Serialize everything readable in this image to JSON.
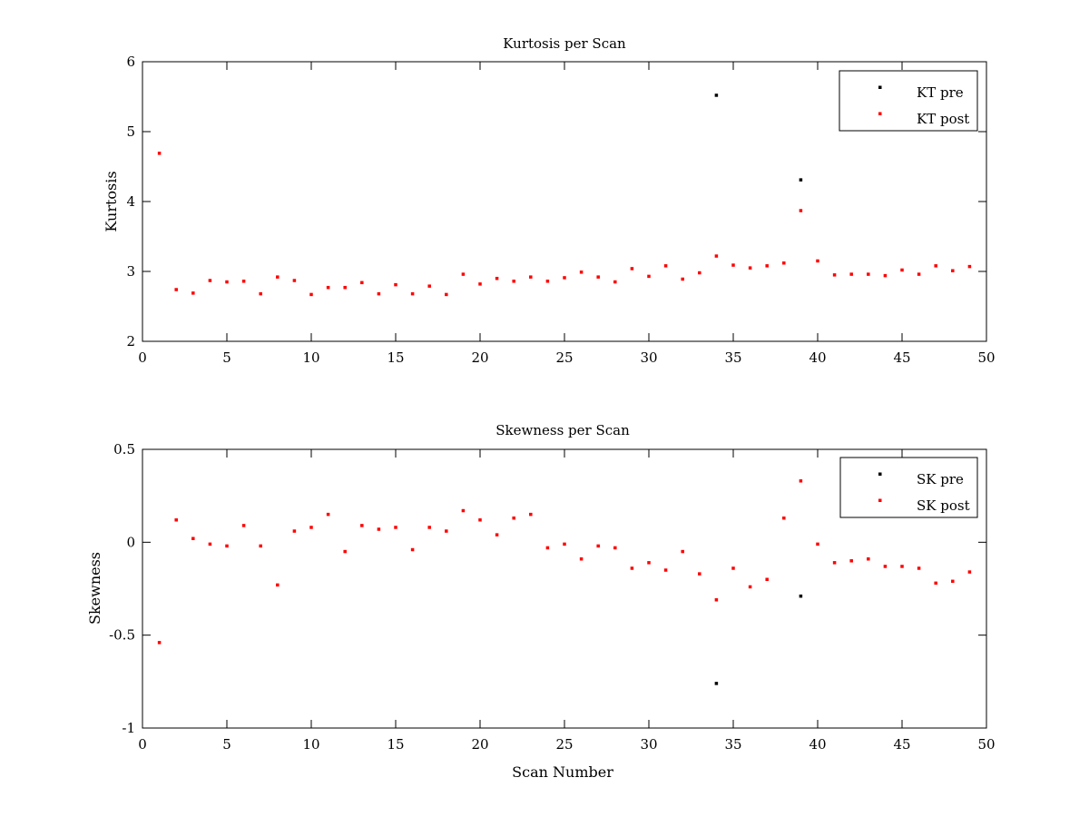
{
  "chart_data": [
    {
      "type": "scatter",
      "title": "Kurtosis per Scan",
      "xlabel": "",
      "ylabel": "Kurtosis",
      "xlim": [
        0,
        50
      ],
      "ylim": [
        2,
        6
      ],
      "xticks": [
        "0",
        "5",
        "10",
        "15",
        "20",
        "25",
        "30",
        "35",
        "40",
        "45",
        "50"
      ],
      "yticks": [
        "2",
        "3",
        "4",
        "5",
        "6"
      ],
      "legend_position": "top-right",
      "grid": false,
      "series": [
        {
          "name": "KT pre",
          "color": "#000000",
          "x": [
            34,
            39
          ],
          "y": [
            5.52,
            4.31
          ]
        },
        {
          "name": "KT post",
          "color": "#ff0000",
          "x": [
            1,
            2,
            3,
            4,
            5,
            6,
            7,
            8,
            9,
            10,
            11,
            12,
            13,
            14,
            15,
            16,
            17,
            18,
            19,
            20,
            21,
            22,
            23,
            24,
            25,
            26,
            27,
            28,
            29,
            30,
            31,
            32,
            33,
            34,
            35,
            36,
            37,
            38,
            39,
            40,
            41,
            42,
            43,
            44,
            45,
            46,
            47,
            48,
            49
          ],
          "y": [
            4.69,
            2.74,
            2.69,
            2.87,
            2.85,
            2.86,
            2.68,
            2.92,
            2.87,
            2.67,
            2.77,
            2.77,
            2.84,
            2.68,
            2.81,
            2.68,
            2.79,
            2.67,
            2.96,
            2.82,
            2.9,
            2.86,
            2.92,
            2.86,
            2.91,
            2.99,
            2.92,
            2.85,
            3.04,
            2.93,
            3.08,
            2.89,
            2.98,
            3.22,
            3.09,
            3.05,
            3.08,
            3.12,
            3.87,
            3.15,
            2.95,
            2.96,
            2.96,
            2.94,
            3.02,
            2.96,
            3.08,
            3.01,
            3.07
          ]
        }
      ]
    },
    {
      "type": "scatter",
      "title": "Skewness per Scan",
      "xlabel": "Scan Number",
      "ylabel": "Skewness",
      "xlim": [
        0,
        50
      ],
      "ylim": [
        -1,
        0.5
      ],
      "xticks": [
        "0",
        "5",
        "10",
        "15",
        "20",
        "25",
        "30",
        "35",
        "40",
        "45",
        "50"
      ],
      "yticks": [
        "-1",
        "-0.5",
        "0",
        "0.5"
      ],
      "legend_position": "top-right",
      "grid": false,
      "series": [
        {
          "name": "SK pre",
          "color": "#000000",
          "x": [
            34,
            39
          ],
          "y": [
            -0.76,
            -0.29
          ]
        },
        {
          "name": "SK post",
          "color": "#ff0000",
          "x": [
            1,
            2,
            3,
            4,
            5,
            6,
            7,
            8,
            9,
            10,
            11,
            12,
            13,
            14,
            15,
            16,
            17,
            18,
            19,
            20,
            21,
            22,
            23,
            24,
            25,
            26,
            27,
            28,
            29,
            30,
            31,
            32,
            33,
            34,
            35,
            36,
            37,
            38,
            39,
            40,
            41,
            42,
            43,
            44,
            45,
            46,
            47,
            48,
            49
          ],
          "y": [
            -0.54,
            0.12,
            0.02,
            -0.01,
            -0.02,
            0.09,
            -0.02,
            -0.23,
            0.06,
            0.08,
            0.15,
            -0.05,
            0.09,
            0.07,
            0.08,
            -0.04,
            0.08,
            0.06,
            0.17,
            0.12,
            0.04,
            0.13,
            0.15,
            -0.03,
            -0.01,
            -0.09,
            -0.02,
            -0.03,
            -0.14,
            -0.11,
            -0.15,
            -0.05,
            -0.17,
            -0.31,
            -0.14,
            -0.24,
            -0.2,
            0.13,
            0.33,
            -0.01,
            -0.11,
            -0.1,
            -0.09,
            -0.13,
            -0.13,
            -0.14,
            -0.22,
            -0.21,
            -0.16
          ]
        }
      ]
    }
  ]
}
